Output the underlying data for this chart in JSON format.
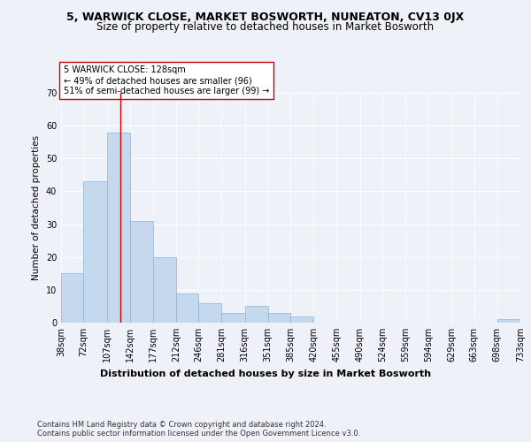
{
  "title": "5, WARWICK CLOSE, MARKET BOSWORTH, NUNEATON, CV13 0JX",
  "subtitle": "Size of property relative to detached houses in Market Bosworth",
  "xlabel": "Distribution of detached houses by size in Market Bosworth",
  "ylabel": "Number of detached properties",
  "background_color": "#eef2f8",
  "bar_color": "#c5d9ee",
  "bar_edge_color": "#8ab4d8",
  "vline_x": 128,
  "vline_color": "#cc0000",
  "annotation_lines": [
    "5 WARWICK CLOSE: 128sqm",
    "← 49% of detached houses are smaller (96)",
    "51% of semi-detached houses are larger (99) →"
  ],
  "bin_edges": [
    38,
    72,
    107,
    142,
    177,
    212,
    246,
    281,
    316,
    351,
    385,
    420,
    455,
    490,
    524,
    559,
    594,
    629,
    663,
    698,
    733
  ],
  "bar_heights": [
    15,
    43,
    58,
    31,
    20,
    9,
    6,
    3,
    5,
    3,
    2,
    0,
    0,
    0,
    0,
    0,
    0,
    0,
    0,
    1
  ],
  "ylim": [
    0,
    70
  ],
  "yticks": [
    0,
    10,
    20,
    30,
    40,
    50,
    60,
    70
  ],
  "footer_text": "Contains HM Land Registry data © Crown copyright and database right 2024.\nContains public sector information licensed under the Open Government Licence v3.0.",
  "title_fontsize": 9,
  "subtitle_fontsize": 8.5,
  "xlabel_fontsize": 8,
  "ylabel_fontsize": 7.5,
  "tick_fontsize": 7,
  "annotation_fontsize": 7,
  "footer_fontsize": 6
}
